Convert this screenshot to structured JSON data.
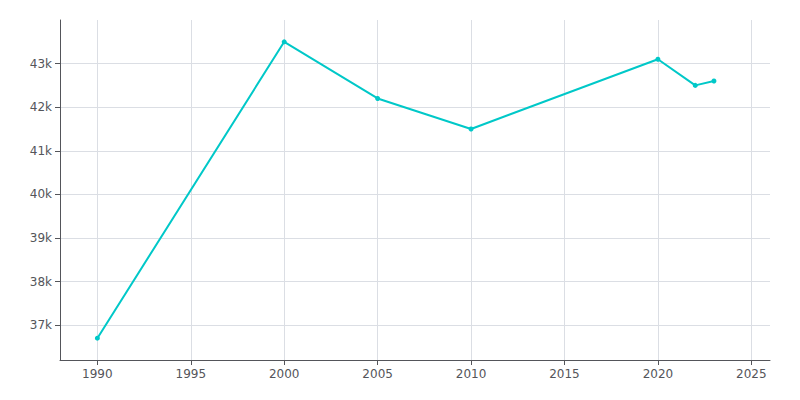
{
  "chart_data": {
    "type": "line",
    "x": [
      1990,
      2000,
      2005,
      2010,
      2020,
      2022,
      2023
    ],
    "values": [
      36700,
      43500,
      42200,
      41500,
      43100,
      42500,
      42600
    ],
    "color": "#00c8c8",
    "marker": "circle",
    "xlim": [
      1988,
      2026
    ],
    "ylim": [
      36200,
      44000
    ],
    "xticks": [
      1990,
      1995,
      2000,
      2005,
      2010,
      2015,
      2020,
      2025
    ],
    "yticks": [
      {
        "value": 37000,
        "label": "37k"
      },
      {
        "value": 38000,
        "label": "38k"
      },
      {
        "value": 39000,
        "label": "39k"
      },
      {
        "value": 40000,
        "label": "40k"
      },
      {
        "value": 41000,
        "label": "41k"
      },
      {
        "value": 42000,
        "label": "42k"
      },
      {
        "value": 43000,
        "label": "43k"
      }
    ],
    "grid": true
  }
}
